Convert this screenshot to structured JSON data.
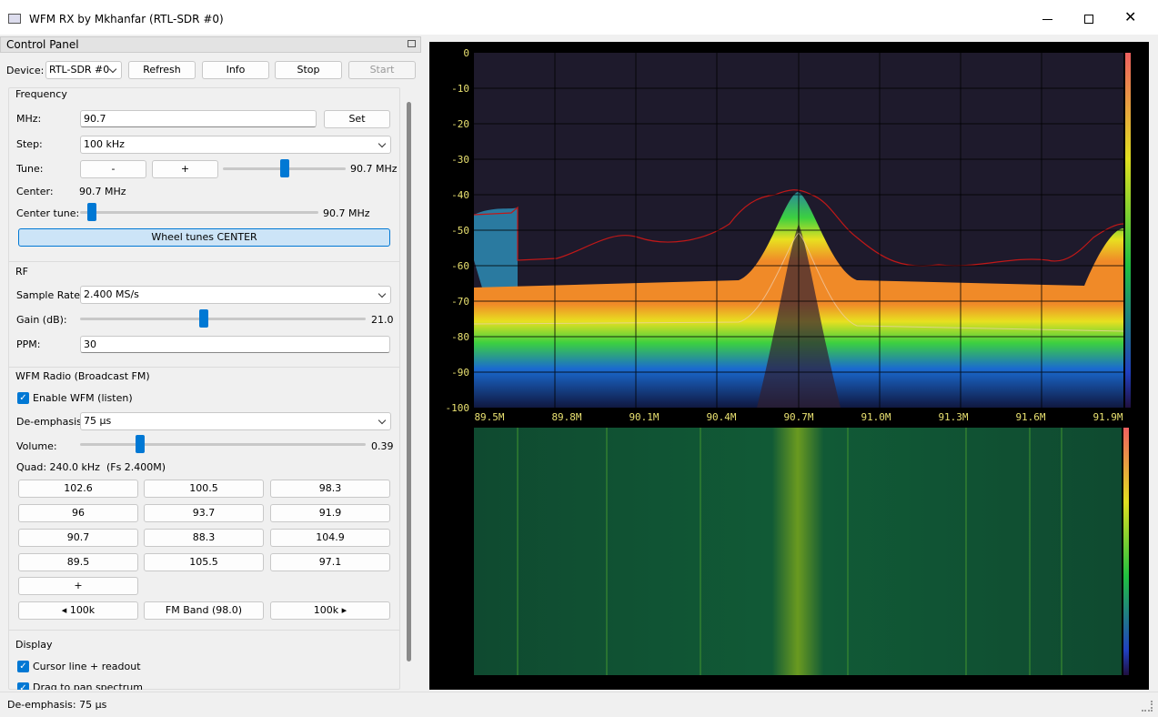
{
  "window": {
    "title": "WFM RX by Mkhanfar (RTL-SDR #0)"
  },
  "panel": {
    "title": "Control Panel",
    "device": {
      "label": "Device:",
      "value": "RTL-SDR #0",
      "buttons": [
        "Refresh",
        "Info",
        "Stop",
        "Start"
      ]
    },
    "frequency": {
      "title": "Frequency",
      "mhz_label": "MHz:",
      "mhz_value": "90.7",
      "set": "Set",
      "step_label": "Step:",
      "step_value": "100 kHz",
      "tune_label": "Tune:",
      "minus": "-",
      "plus": "+",
      "tune_readout": "90.7 MHz",
      "center_label": "Center:",
      "center_value": "90.7 MHz",
      "center_tune_label": "Center tune:",
      "center_tune_readout": "90.7 MHz",
      "wheel_button": "Wheel tunes CENTER"
    },
    "rf": {
      "title": "RF",
      "sample_rate_label": "Sample Rate:",
      "sample_rate_value": "2.400 MS/s",
      "gain_label": "Gain (dB):",
      "gain_value": "21.0",
      "ppm_label": "PPM:",
      "ppm_value": "30"
    },
    "wfm": {
      "title": "WFM Radio (Broadcast FM)",
      "enable": "Enable WFM (listen)",
      "deemph_label": "De-emphasis:",
      "deemph_value": "75 µs",
      "volume_label": "Volume:",
      "volume_value": "0.39",
      "quad": "Quad: 240.0 kHz  (Fs 2.400M)",
      "presets": [
        "102.6",
        "100.5",
        "98.3",
        "96",
        "93.7",
        "91.9",
        "90.7",
        "88.3",
        "104.9",
        "89.5",
        "105.5",
        "97.1"
      ],
      "add": "+",
      "prev": "◂ 100k",
      "band": "FM Band (98.0)",
      "next": "100k ▸"
    },
    "display": {
      "title": "Display",
      "cursor": "Cursor line + readout",
      "drag": "Drag to pan spectrum"
    }
  },
  "status": "De-emphasis: 75 µs",
  "spectrum": {
    "y_labels": [
      "0",
      "-10",
      "-20",
      "-30",
      "-40",
      "-50",
      "-60",
      "-70",
      "-80",
      "-90",
      "-100"
    ],
    "x_labels": [
      "89.5M",
      "89.8M",
      "90.1M",
      "90.4M",
      "90.7M",
      "91.0M",
      "91.3M",
      "91.6M",
      "91.9M"
    ]
  }
}
